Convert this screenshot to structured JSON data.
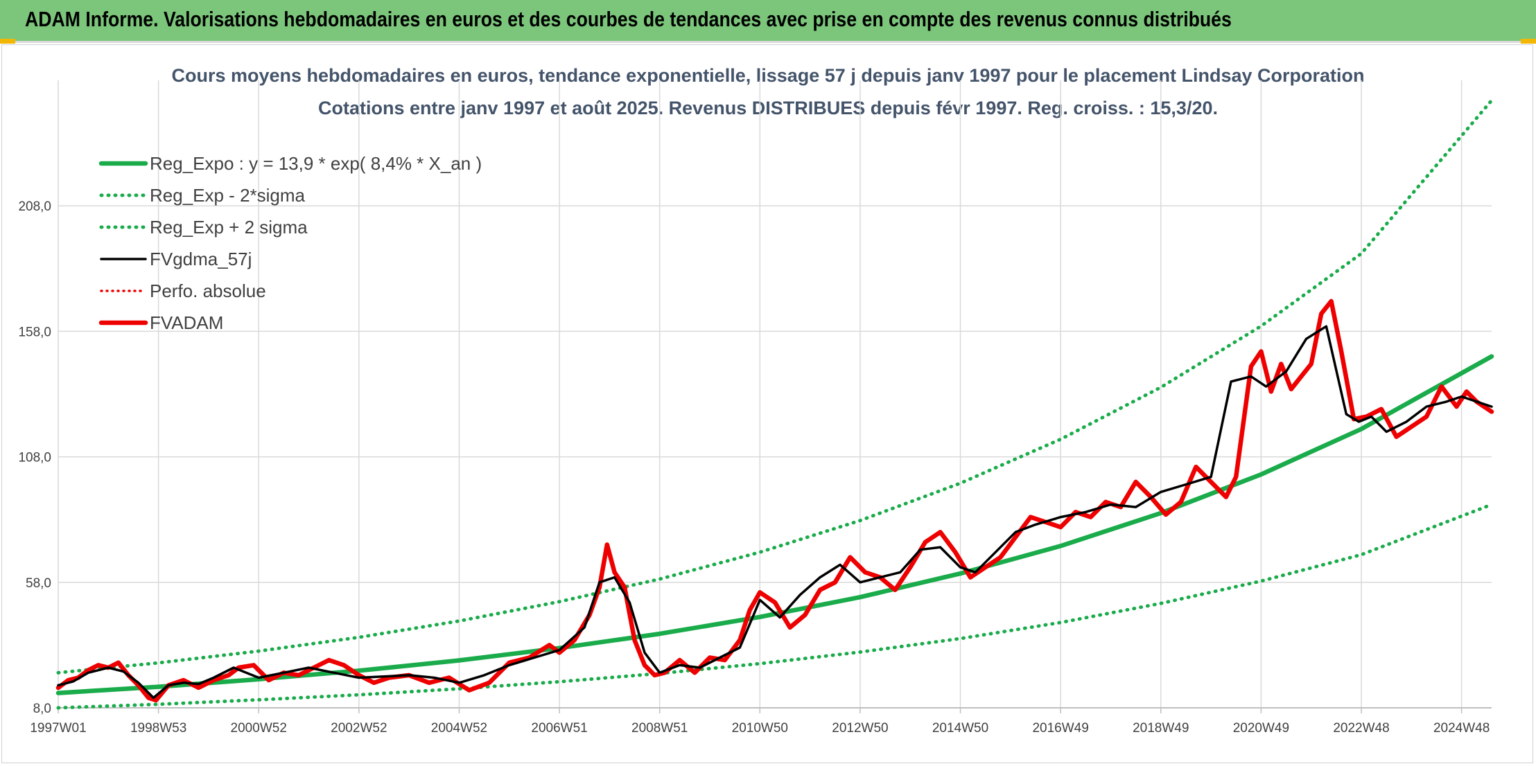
{
  "header": {
    "title": "ADAM Informe. Valorisations hebdomadaires en euros et des courbes de tendances avec prise en compte des revenus connus distribués"
  },
  "colors": {
    "banner_bg": "#7bc67b",
    "trend_green": "#1aab4b",
    "fvadam_red": "#ee0000",
    "smooth_black": "#000000",
    "grid": "#d9d9d9",
    "title_text": "#44546a"
  },
  "chart_data": {
    "type": "line",
    "title": "Cours moyens hebdomadaires en euros, tendance exponentielle, lissage 57 j depuis janv 1997 pour le placement Lindsay Corporation",
    "subtitle": "Cotations entre janv 1997 et août 2025. Revenus DISTRIBUES depuis févr 1997. Reg. croiss. : 15,3/20.",
    "xlabel": "",
    "ylabel": "",
    "x_range": [
      1997.0,
      2025.6
    ],
    "ylim": [
      8.0,
      258.0
    ],
    "y_ticks": [
      "8,0",
      "58,0",
      "108,0",
      "158,0",
      "208,0"
    ],
    "y_tick_values": [
      8,
      58,
      108,
      158,
      208
    ],
    "x_tick_labels": [
      "1997W01",
      "1998W53",
      "2000W52",
      "2002W52",
      "2004W52",
      "2006W51",
      "2008W51",
      "2010W50",
      "2012W50",
      "2014W50",
      "2016W49",
      "2018W49",
      "2020W49",
      "2022W48",
      "2024W48"
    ],
    "x_tick_values": [
      1997.0,
      1999.0,
      2001.0,
      2003.0,
      2005.0,
      2007.0,
      2009.0,
      2011.0,
      2013.0,
      2015.0,
      2017.0,
      2019.0,
      2021.0,
      2023.0,
      2025.0
    ],
    "grid": true,
    "legend_position": "top-left",
    "series": [
      {
        "name": "Reg_Expo : y = 13,9 * exp( 8,4% *  X_an )",
        "style": "solid-thick",
        "color": "#1aab4b",
        "x": [
          1997,
          1999,
          2001,
          2003,
          2005,
          2007,
          2009,
          2011,
          2013,
          2015,
          2017,
          2019,
          2021,
          2023,
          2025.6
        ],
        "values": [
          13.9,
          16.4,
          19.4,
          22.8,
          26.9,
          31.8,
          37.5,
          44.2,
          52.1,
          61.5,
          72.5,
          85.6,
          101.0,
          119.1,
          148.0
        ]
      },
      {
        "name": "Reg_Exp - 2*sigma",
        "style": "dotted",
        "color": "#1aab4b",
        "x": [
          1997,
          1999,
          2001,
          2003,
          2005,
          2007,
          2009,
          2011,
          2013,
          2015,
          2017,
          2019,
          2021,
          2023,
          2025.6
        ],
        "values": [
          8.0,
          9.4,
          11.2,
          13.2,
          15.6,
          18.4,
          21.7,
          25.6,
          30.2,
          35.6,
          42.0,
          49.6,
          58.5,
          69.0,
          89.0
        ]
      },
      {
        "name": "Reg_Exp + 2 sigma",
        "style": "dotted",
        "color": "#1aab4b",
        "x": [
          1997,
          1999,
          2001,
          2003,
          2005,
          2007,
          2009,
          2011,
          2013,
          2015,
          2017,
          2019,
          2021,
          2023,
          2025.6
        ],
        "values": [
          22.0,
          25.9,
          30.6,
          36.1,
          42.6,
          50.3,
          59.3,
          70.0,
          82.6,
          97.5,
          115.0,
          135.7,
          160.1,
          189.0,
          250.0
        ]
      },
      {
        "name": "FVgdma_57j",
        "style": "solid-medium",
        "color": "#000000",
        "x": [
          1997.0,
          1997.3,
          1997.6,
          1998.0,
          1998.3,
          1998.6,
          1998.9,
          1999.2,
          1999.5,
          1999.8,
          2000.1,
          2000.5,
          2001.0,
          2001.5,
          2002.0,
          2002.5,
          2003.0,
          2003.5,
          2004.0,
          2004.5,
          2005.0,
          2005.5,
          2006.0,
          2006.5,
          2007.0,
          2007.5,
          2007.8,
          2008.1,
          2008.4,
          2008.7,
          2009.0,
          2009.4,
          2009.8,
          2010.2,
          2010.6,
          2011.0,
          2011.4,
          2011.8,
          2012.2,
          2012.6,
          2013.0,
          2013.4,
          2013.8,
          2014.2,
          2014.6,
          2015.0,
          2015.3,
          2015.7,
          2016.1,
          2016.5,
          2017.0,
          2017.5,
          2018.0,
          2018.5,
          2019.0,
          2019.5,
          2020.0,
          2020.4,
          2020.8,
          2021.1,
          2021.5,
          2021.9,
          2022.3,
          2022.7,
          2022.95,
          2023.2,
          2023.5,
          2023.9,
          2024.3,
          2024.7,
          2025.0,
          2025.3,
          2025.6
        ],
        "values": [
          17.0,
          18.5,
          22.0,
          24.0,
          22.5,
          18.0,
          12.0,
          17.0,
          18.0,
          17.5,
          20.0,
          24.0,
          20.0,
          22.0,
          24.0,
          22.0,
          20.0,
          20.5,
          21.0,
          20.0,
          18.0,
          21.0,
          25.0,
          28.0,
          31.0,
          40.0,
          58.0,
          60.0,
          50.0,
          30.0,
          22.0,
          25.0,
          24.0,
          28.0,
          32.0,
          51.0,
          44.0,
          53.0,
          60.0,
          65.0,
          58.0,
          60.0,
          62.0,
          71.0,
          72.0,
          64.0,
          62.0,
          70.0,
          78.0,
          81.0,
          84.0,
          86.0,
          89.0,
          88.0,
          94.0,
          97.0,
          100.0,
          138.0,
          140.0,
          136.0,
          142.0,
          155.0,
          160.0,
          125.0,
          122.0,
          124.0,
          118.0,
          122.0,
          128.0,
          130.0,
          132.0,
          130.0,
          128.0
        ]
      },
      {
        "name": "Perfo. absolue",
        "style": "dotted-thin",
        "color": "#ee0000",
        "x": [],
        "values": []
      },
      {
        "name": "FVADAM",
        "style": "solid-thick",
        "color": "#ee0000",
        "x": [
          1997.0,
          1997.2,
          1997.4,
          1997.6,
          1997.8,
          1998.0,
          1998.2,
          1998.4,
          1998.6,
          1998.8,
          1998.95,
          1999.2,
          1999.5,
          1999.8,
          2000.1,
          2000.4,
          2000.6,
          2000.9,
          2001.2,
          2001.5,
          2001.8,
          2002.1,
          2002.4,
          2002.7,
          2003.0,
          2003.3,
          2003.6,
          2004.0,
          2004.4,
          2004.8,
          2005.2,
          2005.6,
          2006.0,
          2006.4,
          2006.8,
          2007.0,
          2007.3,
          2007.6,
          2007.8,
          2007.95,
          2008.1,
          2008.3,
          2008.5,
          2008.7,
          2008.9,
          2009.1,
          2009.4,
          2009.7,
          2010.0,
          2010.3,
          2010.6,
          2010.8,
          2011.0,
          2011.3,
          2011.6,
          2011.9,
          2012.2,
          2012.5,
          2012.8,
          2013.1,
          2013.4,
          2013.7,
          2014.0,
          2014.3,
          2014.6,
          2014.9,
          2015.2,
          2015.5,
          2015.8,
          2016.1,
          2016.4,
          2016.7,
          2017.0,
          2017.3,
          2017.6,
          2017.9,
          2018.2,
          2018.5,
          2018.8,
          2019.1,
          2019.4,
          2019.7,
          2020.0,
          2020.3,
          2020.5,
          2020.8,
          2021.0,
          2021.2,
          2021.4,
          2021.6,
          2021.8,
          2022.0,
          2022.2,
          2022.4,
          2022.6,
          2022.85,
          2023.1,
          2023.4,
          2023.7,
          2024.0,
          2024.3,
          2024.6,
          2024.9,
          2025.1,
          2025.3,
          2025.6
        ],
        "values": [
          16.0,
          19.0,
          20.0,
          23.0,
          25.0,
          24.0,
          26.0,
          21.0,
          17.0,
          12.0,
          11.0,
          17.0,
          19.0,
          16.0,
          19.0,
          21.0,
          24.0,
          25.0,
          19.0,
          22.0,
          21.0,
          24.0,
          27.0,
          25.0,
          21.0,
          18.0,
          20.0,
          21.0,
          18.0,
          20.0,
          15.0,
          18.0,
          26.0,
          28.0,
          33.0,
          30.0,
          35.0,
          45.0,
          56.0,
          73.0,
          62.0,
          56.0,
          35.0,
          25.0,
          21.0,
          22.0,
          27.0,
          22.0,
          28.0,
          27.0,
          35.0,
          47.0,
          54.0,
          50.0,
          40.0,
          45.0,
          55.0,
          58.0,
          68.0,
          62.0,
          60.0,
          55.0,
          64.0,
          74.0,
          78.0,
          70.0,
          60.0,
          64.0,
          68.0,
          76.0,
          84.0,
          82.0,
          80.0,
          86.0,
          84.0,
          90.0,
          88.0,
          98.0,
          92.0,
          85.0,
          90.0,
          104.0,
          98.0,
          92.0,
          100.0,
          144.0,
          150.0,
          134.0,
          145.0,
          135.0,
          140.0,
          145.0,
          165.0,
          170.0,
          150.0,
          123.0,
          124.0,
          127.0,
          116.0,
          120.0,
          124.0,
          136.0,
          128.0,
          134.0,
          130.0,
          126.0
        ]
      }
    ]
  }
}
